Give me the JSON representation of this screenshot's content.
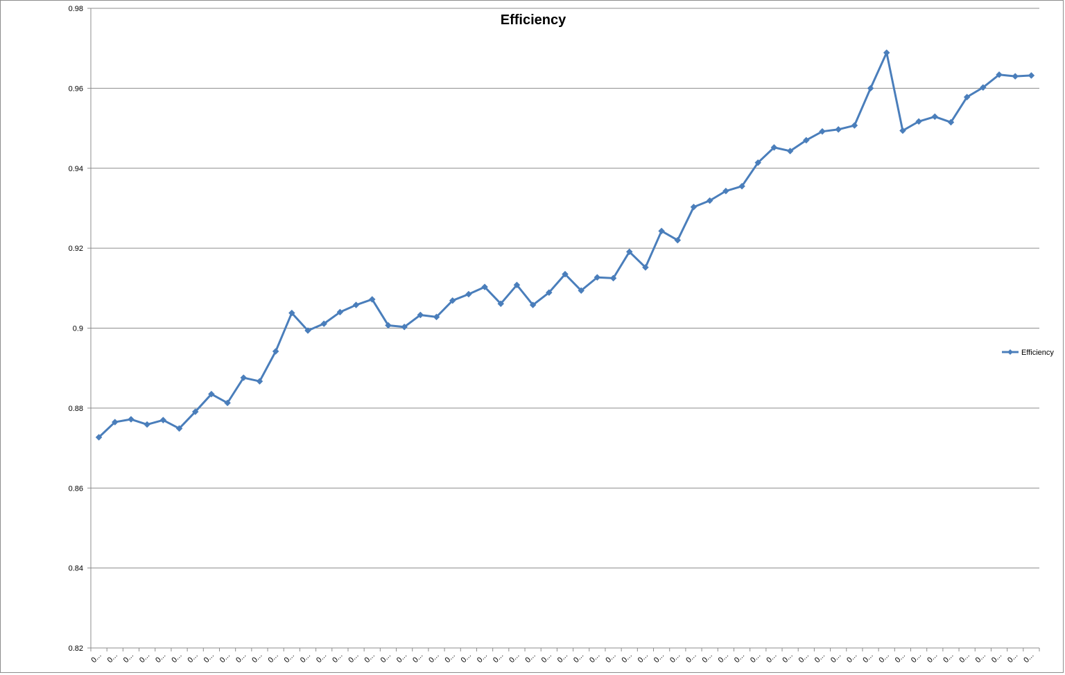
{
  "chart_data": {
    "type": "line",
    "title": "Efficiency",
    "xlabel": "",
    "ylabel": "",
    "ylim": [
      0.82,
      0.98
    ],
    "y_ticks": [
      "0.82",
      "0.84",
      "0.86",
      "0.88",
      "0.9",
      "0.92",
      "0.94",
      "0.96",
      "0.98"
    ],
    "y_tick_values": [
      0.82,
      0.84,
      0.86,
      0.88,
      0.9,
      0.92,
      0.94,
      0.96,
      0.98
    ],
    "x_tick_label": "0...",
    "grid": "horizontal",
    "legend": {
      "position": "right",
      "entries": [
        "Efficiency"
      ]
    },
    "colors": {
      "series": "#4a7ebb",
      "grid": "#8c8c8c",
      "axis": "#8c8c8c"
    },
    "series": [
      {
        "name": "Efficiency",
        "values": [
          0.8727,
          0.8765,
          0.8772,
          0.8759,
          0.877,
          0.8749,
          0.8791,
          0.8835,
          0.8813,
          0.8876,
          0.8867,
          0.8942,
          0.9038,
          0.8994,
          0.9011,
          0.904,
          0.9058,
          0.9072,
          0.9007,
          0.9003,
          0.9033,
          0.9028,
          0.9069,
          0.9085,
          0.9103,
          0.9061,
          0.9108,
          0.9058,
          0.9089,
          0.9135,
          0.9094,
          0.9127,
          0.9125,
          0.9191,
          0.9152,
          0.9243,
          0.922,
          0.9303,
          0.9319,
          0.9343,
          0.9355,
          0.9414,
          0.9452,
          0.9443,
          0.947,
          0.9492,
          0.9497,
          0.9507,
          0.96,
          0.9689,
          0.9494,
          0.9517,
          0.9529,
          0.9515,
          0.9578,
          0.9602,
          0.9634,
          0.963,
          0.9632
        ]
      }
    ]
  }
}
